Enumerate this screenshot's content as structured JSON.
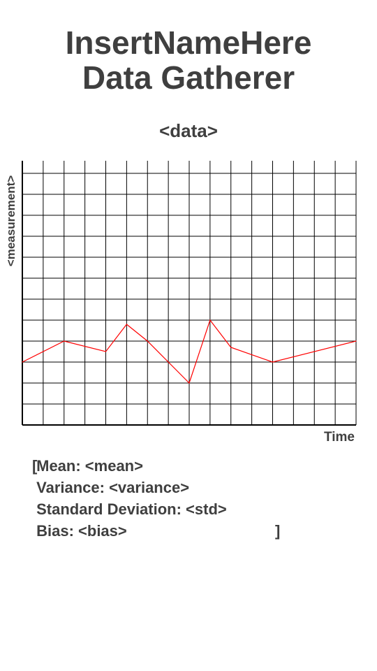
{
  "app": {
    "title_line1": "InsertNameHere",
    "title_line2": "Data Gatherer"
  },
  "chart_data": {
    "type": "line",
    "title": "<data>",
    "xlabel": "Time",
    "ylabel": "<measurement>",
    "grid": true,
    "x": [
      0,
      2,
      4,
      5,
      6,
      8,
      9,
      10,
      12,
      16
    ],
    "values": [
      3,
      4,
      3.5,
      4.8,
      4,
      2,
      5,
      3.7,
      3,
      4
    ],
    "series": [
      {
        "values": [
          3,
          4,
          3.5,
          4.8,
          4,
          2,
          5,
          3.7,
          3,
          4
        ],
        "color": "#ff0000"
      }
    ],
    "xlim": [
      0,
      16
    ],
    "ylim": [
      0,
      12.6
    ]
  },
  "stats": {
    "open_bracket": "[",
    "mean": "Mean: <mean>",
    "variance": "Variance: <variance>",
    "std": "Standard Deviation: <std>",
    "bias": "Bias: <bias>",
    "close_bracket": "]"
  }
}
